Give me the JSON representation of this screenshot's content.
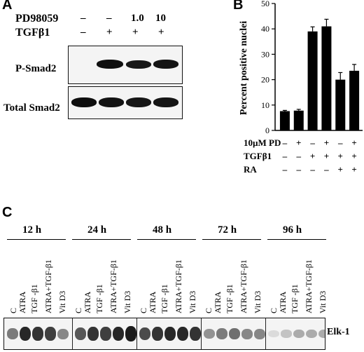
{
  "panels": {
    "a": "A",
    "b": "B",
    "c": "C"
  },
  "panel_a": {
    "row_pd_label": "PD98059",
    "row_pd_values": [
      "–",
      "–",
      "1.0",
      "10"
    ],
    "row_tgf_label": "TGFβ1",
    "row_tgf_values": [
      "–",
      "+",
      "+",
      "+"
    ],
    "blot1_label": "P-Smad2",
    "blot2_label": "Total Smad2"
  },
  "chart_data": {
    "type": "bar",
    "ylabel": "Percent positive nuclei",
    "ylim": [
      0,
      50
    ],
    "yticks": [
      "0",
      "10",
      "20",
      "30",
      "40",
      "50"
    ],
    "values": [
      7.6,
      7.8,
      39,
      41,
      20,
      23.5
    ],
    "errors": [
      0.3,
      0.5,
      1.8,
      2.8,
      2.8,
      2.5
    ],
    "bar_color": "#000000",
    "conditions": [
      {
        "label": "10µM PD",
        "values": [
          "–",
          "+",
          "–",
          "+",
          "–",
          "+"
        ]
      },
      {
        "label": "TGFβ1",
        "values": [
          "–",
          "–",
          "+",
          "+",
          "+",
          "+"
        ]
      },
      {
        "label": "RA",
        "values": [
          "–",
          "–",
          "–",
          "–",
          "+",
          "+"
        ]
      }
    ]
  },
  "panel_c": {
    "timepoints": [
      "12 h",
      "24 h",
      "48 h",
      "72 h",
      "96 h"
    ],
    "lane_labels": [
      "C",
      "ATRA",
      "TGF -β1",
      "ATRA+TGF-β1",
      "Vit D3"
    ],
    "blot_label": "Elk-1"
  }
}
